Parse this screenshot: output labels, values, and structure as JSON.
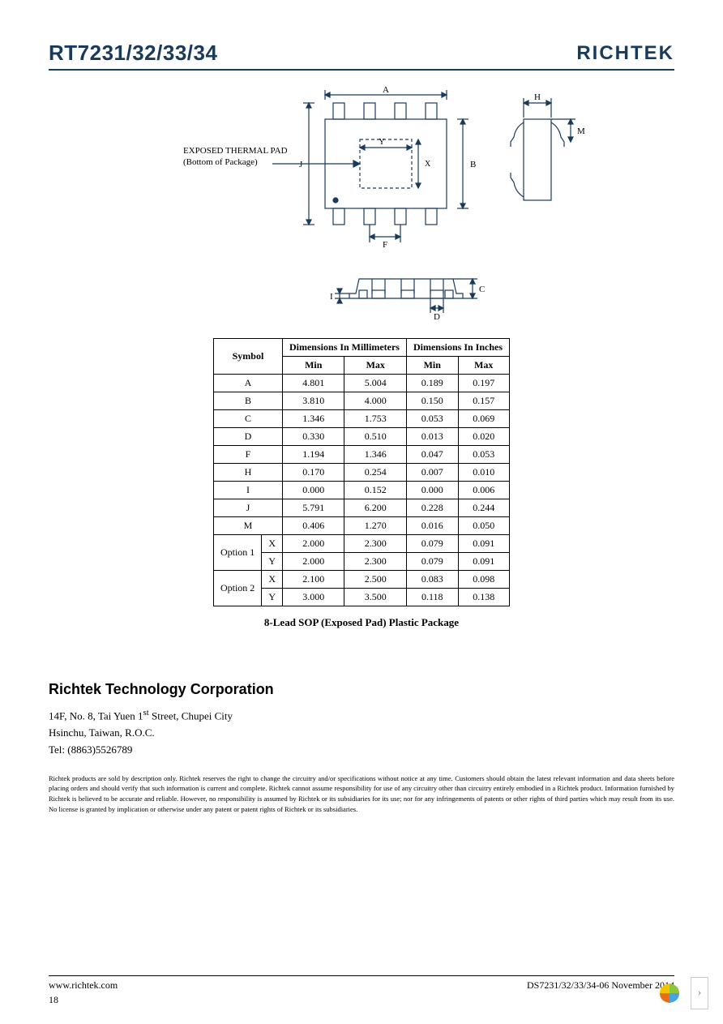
{
  "header": {
    "part_number": "RT7231/32/33/34",
    "logo_text": "RICHTEK"
  },
  "diagram": {
    "thermal_pad_label_1": "EXPOSED THERMAL PAD",
    "thermal_pad_label_2": "(Bottom of Package)",
    "dim_labels": [
      "A",
      "B",
      "C",
      "D",
      "F",
      "H",
      "I",
      "J",
      "M",
      "X",
      "Y"
    ],
    "colors": {
      "stroke": "#1a3a5c",
      "text": "#000000",
      "tick": "#1a3a5c"
    }
  },
  "table": {
    "header_symbol": "Symbol",
    "header_mm": "Dimensions In Millimeters",
    "header_in": "Dimensions In Inches",
    "header_min": "Min",
    "header_max": "Max",
    "option1_label": "Option 1",
    "option2_label": "Option 2",
    "rows": [
      {
        "sym": "A",
        "mm_min": "4.801",
        "mm_max": "5.004",
        "in_min": "0.189",
        "in_max": "0.197"
      },
      {
        "sym": "B",
        "mm_min": "3.810",
        "mm_max": "4.000",
        "in_min": "0.150",
        "in_max": "0.157"
      },
      {
        "sym": "C",
        "mm_min": "1.346",
        "mm_max": "1.753",
        "in_min": "0.053",
        "in_max": "0.069"
      },
      {
        "sym": "D",
        "mm_min": "0.330",
        "mm_max": "0.510",
        "in_min": "0.013",
        "in_max": "0.020"
      },
      {
        "sym": "F",
        "mm_min": "1.194",
        "mm_max": "1.346",
        "in_min": "0.047",
        "in_max": "0.053"
      },
      {
        "sym": "H",
        "mm_min": "0.170",
        "mm_max": "0.254",
        "in_min": "0.007",
        "in_max": "0.010"
      },
      {
        "sym": "I",
        "mm_min": "0.000",
        "mm_max": "0.152",
        "in_min": "0.000",
        "in_max": "0.006"
      },
      {
        "sym": "J",
        "mm_min": "5.791",
        "mm_max": "6.200",
        "in_min": "0.228",
        "in_max": "0.244"
      },
      {
        "sym": "M",
        "mm_min": "0.406",
        "mm_max": "1.270",
        "in_min": "0.016",
        "in_max": "0.050"
      }
    ],
    "option1": [
      {
        "sym": "X",
        "mm_min": "2.000",
        "mm_max": "2.300",
        "in_min": "0.079",
        "in_max": "0.091"
      },
      {
        "sym": "Y",
        "mm_min": "2.000",
        "mm_max": "2.300",
        "in_min": "0.079",
        "in_max": "0.091"
      }
    ],
    "option2": [
      {
        "sym": "X",
        "mm_min": "2.100",
        "mm_max": "2.500",
        "in_min": "0.083",
        "in_max": "0.098"
      },
      {
        "sym": "Y",
        "mm_min": "3.000",
        "mm_max": "3.500",
        "in_min": "0.118",
        "in_max": "0.138"
      }
    ],
    "caption": "8-Lead SOP (Exposed Pad) Plastic Package"
  },
  "company": {
    "name": "Richtek Technology Corporation",
    "addr1_a": "14F, No. 8, Tai Yuen 1",
    "addr1_b": "Street, Chupei City",
    "addr1_sup": "st",
    "addr2": "Hsinchu, Taiwan, R.O.C.",
    "tel": "Tel: (8863)5526789"
  },
  "disclaimer": "Richtek products are sold by description only. Richtek reserves the right to change the circuitry and/or specifications without notice at any time. Customers should obtain the latest relevant information and data sheets before placing orders and should verify that such information is current and complete. Richtek cannot assume responsibility for use of any circuitry other than circuitry entirely embodied in a Richtek product. Information furnished by Richtek is believed to be accurate and reliable. However, no responsibility is assumed by Richtek or its subsidiaries for its use; nor for any infringements of patents or other rights of third parties which may result from its use. No license is granted by implication or otherwise under any patent or patent rights of Richtek or its subsidiaries.",
  "footer": {
    "left": "www.richtek.com",
    "right": "DS7231/32/33/34-06   November  2014",
    "page": "18"
  },
  "style": {
    "brand_color": "#1a3a5c",
    "text_color": "#000000",
    "border_color": "#000000",
    "font_body": "Times New Roman",
    "font_header": "Trebuchet MS",
    "base_font_size_pt": 12
  }
}
